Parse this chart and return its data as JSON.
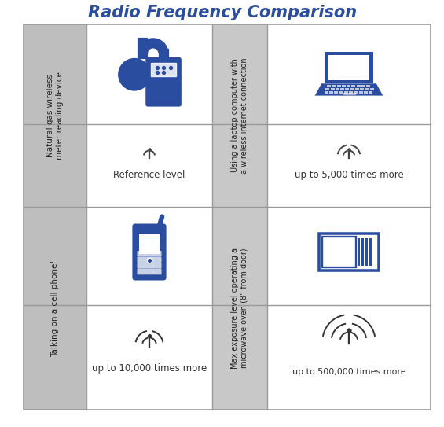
{
  "title": "Radio Frequency Comparison",
  "title_color": "#2B4DA0",
  "title_fontsize": 15,
  "bg_color": "#FFFFFF",
  "grid_line_color": "#999999",
  "icon_color": "#2B4DA0",
  "signal_color_small": "#333333",
  "label_bg_color": "#BEBEBE",
  "mid_col_bg": "#C8C8C8",
  "row_labels": [
    "Natural gas wireless\nmeter reading device",
    "Talking on a cell phone¹"
  ],
  "col_labels": [
    "Using a laptop computer with\na wireless internet connection",
    "Max exposure level operating a\nmicrowave oven (8” from door)"
  ],
  "cell_texts": [
    [
      "Reference level",
      "up to 5,000 times more"
    ],
    [
      "up to 10,000 times more",
      "up to 500,000 times more"
    ]
  ]
}
